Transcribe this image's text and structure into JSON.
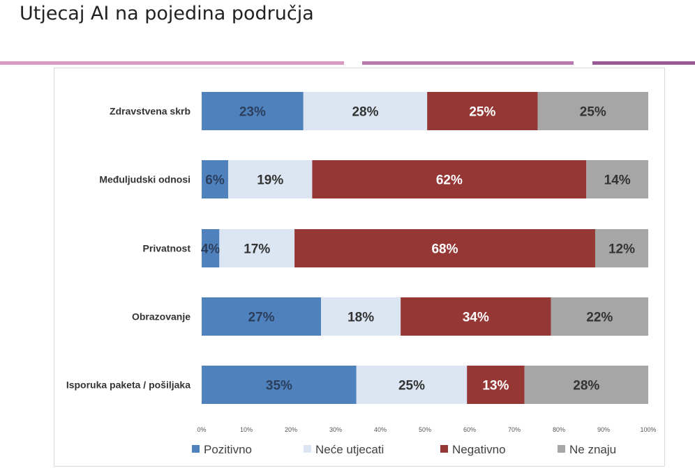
{
  "slide": {
    "title": "Utjecaj AI na pojedina područja"
  },
  "decor": {
    "line_colors": [
      "#d89cc4",
      "#b87aad",
      "#9a5a95"
    ]
  },
  "chart_data": {
    "type": "bar",
    "orientation": "horizontal",
    "stacked": true,
    "percent_stacked": true,
    "categories": [
      "Zdravstvena skrb",
      "Međuljudski odnosi",
      "Privatnost",
      "Obrazovanje",
      "Isporuka paketa / pošiljaka"
    ],
    "series": [
      {
        "name": "Pozitivno",
        "color": "#4f81bd",
        "text_color": "#2b3f5c",
        "values": [
          23,
          6,
          4,
          27,
          35
        ]
      },
      {
        "name": "Neće utjecati",
        "color": "#dce6f2",
        "text_color": "#333333",
        "values": [
          28,
          19,
          17,
          18,
          25
        ]
      },
      {
        "name": "Negativno",
        "color": "#953735",
        "text_color": "#ffffff",
        "values": [
          25,
          62,
          68,
          34,
          13
        ]
      },
      {
        "name": "Ne znaju",
        "color": "#a6a6a6",
        "text_color": "#333333",
        "values": [
          25,
          14,
          12,
          22,
          28
        ]
      }
    ],
    "bar_totals_percent": [
      101,
      101,
      101,
      101,
      101
    ],
    "xlim": [
      0,
      100
    ],
    "x_ticks": [
      "0%",
      "10%",
      "20%",
      "30%",
      "40%",
      "50%",
      "60%",
      "70%",
      "80%",
      "90%",
      "100%"
    ],
    "grid": false,
    "legend_position": "bottom"
  }
}
